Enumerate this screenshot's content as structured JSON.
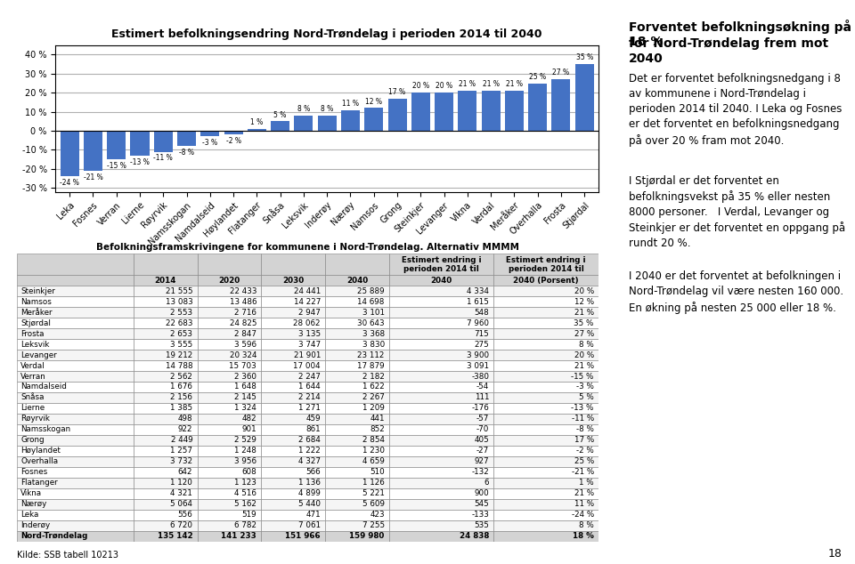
{
  "chart_data": [
    {
      "type": "bar",
      "title": "Estimert befolkningsendring Nord-Trøndelag i perioden 2014 til 2040",
      "categories": [
        "Leka",
        "Fosnes",
        "Verran",
        "Lierne",
        "Røyrvik",
        "Namsskogan",
        "Namdalseid",
        "Høylandet",
        "Flatanger",
        "Snåsa",
        "Leksvik",
        "Inderøy",
        "Nærøy",
        "Namsos",
        "Grong",
        "Steinkjer",
        "Levanger",
        "Vikna",
        "Verdal",
        "Meråker",
        "Overhalla",
        "Frosta",
        "Stjørdal"
      ],
      "values": [
        -24,
        -21,
        -15,
        -13,
        -11,
        -8,
        -3,
        -2,
        1,
        5,
        8,
        8,
        11,
        12,
        17,
        20,
        20,
        21,
        21,
        21,
        25,
        27,
        35
      ],
      "value_labels": [
        "-24 %",
        "-21 %",
        "-15 %",
        "-13 %",
        "-11 %",
        "-8 %",
        "-3 %",
        "-2 %",
        "1 %",
        "5 %",
        "8 %",
        "8 %",
        "11 %",
        "12 %",
        "17 %",
        "20 %",
        "20 %",
        "21 %",
        "21 %",
        "21 %",
        "25 %",
        "27 %",
        "35 %"
      ],
      "color": "#4472C4",
      "ylim": [
        -32,
        45
      ],
      "yticks": [
        {
          "value": -30,
          "label": "-30 %"
        },
        {
          "value": -20,
          "label": "-20 %"
        },
        {
          "value": -10,
          "label": "-10 %"
        },
        {
          "value": 0,
          "label": "0 %"
        },
        {
          "value": 10,
          "label": "10 %"
        },
        {
          "value": 20,
          "label": "20 %"
        },
        {
          "value": 30,
          "label": "30 %"
        },
        {
          "value": 40,
          "label": "40 %"
        }
      ],
      "grid": true,
      "data_labels": true
    },
    {
      "type": "table",
      "title": "Befolkningsframskrivingene for kommunene i Nord-Trøndelag. Alternativ MMMM",
      "header_rows": [
        [
          null,
          null,
          null,
          null,
          null,
          "Estimert endring i\nperioden 2014 til",
          "Estimert endring i\nperioden 2014 til"
        ],
        [
          null,
          "2014",
          "2020",
          "2030",
          "2040",
          "2040",
          "2040 (Porsent)"
        ]
      ],
      "rows": [
        [
          "Steinkjer",
          "21 555",
          "22 433",
          "24 441",
          "25 889",
          "4 334",
          "20 %"
        ],
        [
          "Namsos",
          "13 083",
          "13 486",
          "14 227",
          "14 698",
          "1 615",
          "12 %"
        ],
        [
          "Meråker",
          "2 553",
          "2 716",
          "2 947",
          "3 101",
          "548",
          "21 %"
        ],
        [
          "Stjørdal",
          "22 683",
          "24 825",
          "28 062",
          "30 643",
          "7 960",
          "35 %"
        ],
        [
          "Frosta",
          "2 653",
          "2 847",
          "3 135",
          "3 368",
          "715",
          "27 %"
        ],
        [
          "Leksvik",
          "3 555",
          "3 596",
          "3 747",
          "3 830",
          "275",
          "8 %"
        ],
        [
          "Levanger",
          "19 212",
          "20 324",
          "21 901",
          "23 112",
          "3 900",
          "20 %"
        ],
        [
          "Verdal",
          "14 788",
          "15 703",
          "17 004",
          "17 879",
          "3 091",
          "21 %"
        ],
        [
          "Verran",
          "2 562",
          "2 360",
          "2 247",
          "2 182",
          "-380",
          "-15 %"
        ],
        [
          "Namdalseid",
          "1 676",
          "1 648",
          "1 644",
          "1 622",
          "-54",
          "-3 %"
        ],
        [
          "Snåsa",
          "2 156",
          "2 145",
          "2 214",
          "2 267",
          "111",
          "5 %"
        ],
        [
          "Lierne",
          "1 385",
          "1 324",
          "1 271",
          "1 209",
          "-176",
          "-13 %"
        ],
        [
          "Røyrvik",
          "498",
          "482",
          "459",
          "441",
          "-57",
          "-11 %"
        ],
        [
          "Namsskogan",
          "922",
          "901",
          "861",
          "852",
          "-70",
          "-8 %"
        ],
        [
          "Grong",
          "2 449",
          "2 529",
          "2 684",
          "2 854",
          "405",
          "17 %"
        ],
        [
          "Høylandet",
          "1 257",
          "1 248",
          "1 222",
          "1 230",
          "-27",
          "-2 %"
        ],
        [
          "Overhalla",
          "3 732",
          "3 956",
          "4 327",
          "4 659",
          "927",
          "25 %"
        ],
        [
          "Fosnes",
          "642",
          "608",
          "566",
          "510",
          "-132",
          "-21 %"
        ],
        [
          "Flatanger",
          "1 120",
          "1 123",
          "1 136",
          "1 126",
          "6",
          "1 %"
        ],
        [
          "Vikna",
          "4 321",
          "4 516",
          "4 899",
          "5 221",
          "900",
          "21 %"
        ],
        [
          "Nærøy",
          "5 064",
          "5 162",
          "5 440",
          "5 609",
          "545",
          "11 %"
        ],
        [
          "Leka",
          "556",
          "519",
          "471",
          "423",
          "-133",
          "-24 %"
        ],
        [
          "Inderøy",
          "6 720",
          "6 782",
          "7 061",
          "7 255",
          "535",
          "8 %"
        ],
        [
          "Nord-Trøndelag",
          "135 142",
          "141 233",
          "151 966",
          "159 980",
          "24 838",
          "18 %"
        ]
      ]
    }
  ],
  "headline": [
    "Forventet befolkningsøkning på 18 %",
    "for Nord-Trøndelag frem mot 2040"
  ],
  "paragraphs": [
    "Det er forventet befolkningsnedgang i 8 av kommunene i Nord-Trøndelag i perioden 2014 til 2040. I Leka og Fosnes er det forventet en befolkningsnedgang på over 20 % fram mot 2040.",
    "I Stjørdal er det forventet en befolkningsvekst på 35 % eller nesten 8000 personer.   I Verdal, Levanger og Steinkjer er det forventet en oppgang på rundt 20 %.",
    "I 2040 er det forventet at befolkningen i Nord-Trøndelag vil være nesten 160 000. En økning på nesten 25 000 eller 18 %."
  ],
  "source": "Kilde: SSB tabell 10213",
  "page_number": "18"
}
